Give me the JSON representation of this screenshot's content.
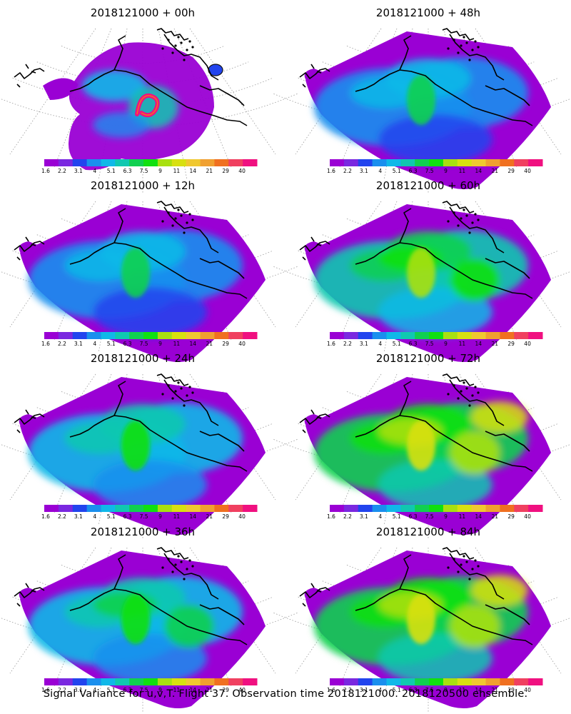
{
  "figure": {
    "caption": "Signal Variance for u,v,T. Flight 37. Observation time 2018121000. 2018120500 ensemble."
  },
  "colorbar": {
    "tick_labels": [
      "1.6",
      "2.2",
      "3.1",
      "4",
      "5.1",
      "6.3",
      "7.5",
      "9",
      "11",
      "14",
      "21",
      "29",
      "40"
    ],
    "colors": [
      "#9a00d4",
      "#7a28e0",
      "#2244ee",
      "#1a8fee",
      "#10b8e8",
      "#10c8b0",
      "#10d050",
      "#10e010",
      "#a8e010",
      "#d8e010",
      "#f0c830",
      "#f0a030",
      "#f07020",
      "#f04060",
      "#f01080"
    ]
  },
  "panels": [
    {
      "title": "2018121000 + 00h",
      "intensity": 0.05,
      "variance_level": "low",
      "hotspot": "magenta ring over Gulf of Alaska"
    },
    {
      "title": "2018121000 + 12h",
      "intensity": 0.3,
      "variance_level": "low-moderate"
    },
    {
      "title": "2018121000 + 24h",
      "intensity": 0.45,
      "variance_level": "moderate"
    },
    {
      "title": "2018121000 + 36h",
      "intensity": 0.55,
      "variance_level": "moderate"
    },
    {
      "title": "2018121000 + 48h",
      "intensity": 0.4,
      "variance_level": "moderate"
    },
    {
      "title": "2018121000 + 60h",
      "intensity": 0.65,
      "variance_level": "moderate-high"
    },
    {
      "title": "2018121000 + 72h",
      "intensity": 0.8,
      "variance_level": "high"
    },
    {
      "title": "2018121000 + 84h",
      "intensity": 0.85,
      "variance_level": "high"
    }
  ]
}
